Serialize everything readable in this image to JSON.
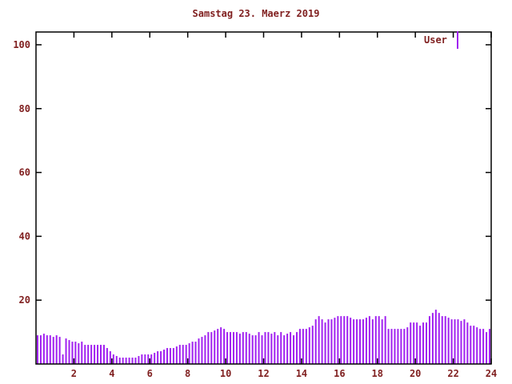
{
  "title": "Samstag 23. Maerz 2019",
  "legend": {
    "label": "User"
  },
  "colors": {
    "series": "#a020f0",
    "text": "#802020",
    "axis": "#000000",
    "background": "#ffffff"
  },
  "chart_data": {
    "type": "bar",
    "title": "Samstag 23. Maerz 2019",
    "xlabel": "",
    "ylabel": "",
    "x_start_hour": 0,
    "x_end_hour": 24,
    "step_minutes": 10,
    "x_ticks": [
      2,
      4,
      6,
      8,
      10,
      12,
      14,
      16,
      18,
      20,
      22,
      24
    ],
    "y_ticks": [
      20,
      40,
      60,
      80,
      100
    ],
    "ylim": [
      0,
      104
    ],
    "grid": false,
    "legend_position": "top-right",
    "series": [
      {
        "name": "User",
        "values": [
          9,
          9,
          9.5,
          9,
          9,
          8.5,
          9,
          8.5,
          3,
          8,
          7.5,
          7,
          7,
          6.5,
          7,
          6,
          6,
          6,
          6,
          6,
          6,
          6,
          5,
          4,
          3,
          2.5,
          2,
          2,
          2,
          2,
          2,
          2,
          2.5,
          3,
          3,
          3,
          3,
          3.5,
          4,
          4,
          4.5,
          5,
          5,
          5,
          5.5,
          6,
          6,
          6,
          6.5,
          7,
          7,
          8,
          8.5,
          9,
          10,
          10,
          10.5,
          11,
          11.5,
          11,
          10,
          10,
          10,
          10,
          9.5,
          10,
          10,
          9.5,
          9,
          9,
          10,
          9,
          10,
          10,
          9.5,
          10,
          9,
          10,
          9,
          9.5,
          10,
          9,
          10,
          11,
          11,
          11,
          11.5,
          12,
          14,
          15,
          14,
          13,
          14,
          14,
          14.5,
          15,
          15,
          15,
          15,
          14.5,
          14,
          14,
          14,
          14,
          14.5,
          15,
          14,
          15,
          15,
          14,
          15,
          11,
          11,
          11,
          11,
          11,
          11,
          11.5,
          13,
          13,
          13,
          12,
          13,
          13,
          15,
          16,
          17,
          16,
          15,
          15,
          14.5,
          14,
          14,
          14,
          13.5,
          14,
          13,
          12,
          12,
          11.5,
          11,
          11,
          10,
          11
        ]
      }
    ]
  }
}
